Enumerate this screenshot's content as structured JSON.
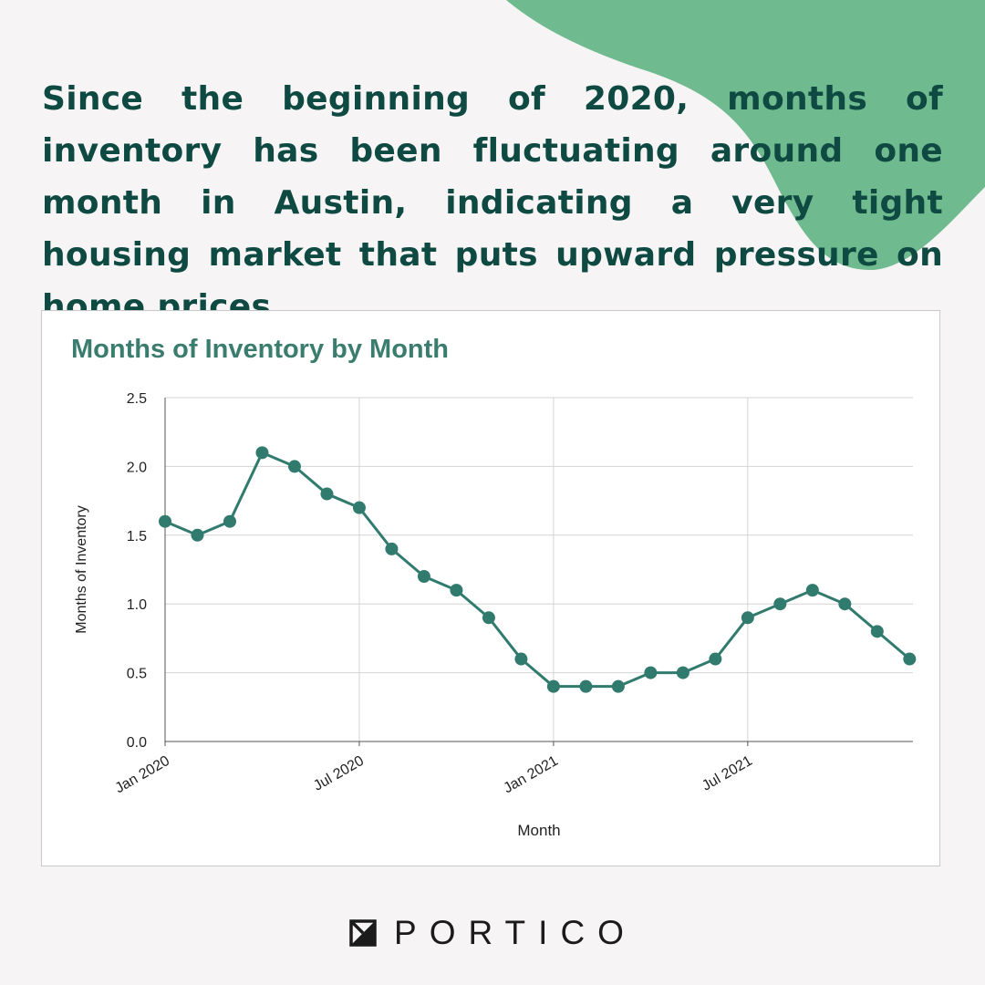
{
  "headline": "Since the beginning of 2020, months of inventory has been fluctuating around one month in Austin, indicating a very tight housing market that puts upward pressure on home prices.",
  "brand": {
    "name": "PORTICO",
    "logo_icon": "portico-logo-icon"
  },
  "colors": {
    "background": "#f6f4f4",
    "accent_blob": "#6fba8f",
    "headline_text": "#0e4a42",
    "chart_title": "#3a7d6e",
    "series_line": "#317b6e"
  },
  "chart_data": {
    "type": "line",
    "title": "Months of Inventory by Month",
    "xlabel": "Month",
    "ylabel": "Months of Inventory",
    "ylim": [
      0,
      2.5
    ],
    "yticks": [
      "0.0",
      "0.5",
      "1.0",
      "1.5",
      "2.0",
      "2.5"
    ],
    "xticks": [
      "Jan 2020",
      "Jul 2020",
      "Jan 2021",
      "Jul 2021"
    ],
    "grid": true,
    "legend": "none",
    "x": [
      "2020-01",
      "2020-02",
      "2020-03",
      "2020-04",
      "2020-05",
      "2020-06",
      "2020-07",
      "2020-08",
      "2020-09",
      "2020-10",
      "2020-11",
      "2020-12",
      "2021-01",
      "2021-02",
      "2021-03",
      "2021-04",
      "2021-05",
      "2021-06",
      "2021-07",
      "2021-08",
      "2021-09",
      "2021-10",
      "2021-11",
      "2021-12"
    ],
    "series": [
      {
        "values": [
          1.6,
          1.5,
          1.6,
          2.1,
          2.0,
          1.8,
          1.7,
          1.4,
          1.2,
          1.1,
          0.9,
          0.6,
          0.4,
          0.4,
          0.4,
          0.5,
          0.5,
          0.6,
          0.9,
          1.0,
          1.1,
          1.0,
          0.8,
          0.6
        ]
      }
    ]
  }
}
